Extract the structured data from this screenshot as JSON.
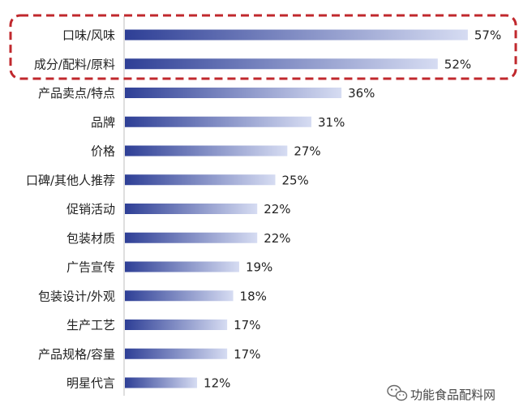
{
  "chart_data": {
    "type": "bar",
    "orientation": "horizontal",
    "categories": [
      "口味/风味",
      "成分/配料/原料",
      "产品卖点/特点",
      "品牌",
      "价格",
      "口碑/其他人推荐",
      "促销活动",
      "包装材质",
      "广告宣传",
      "包装设计/外观",
      "生产工艺",
      "产品规格/容量",
      "明星代言"
    ],
    "values": [
      57,
      52,
      36,
      31,
      27,
      25,
      22,
      22,
      19,
      18,
      17,
      17,
      12
    ],
    "value_labels": [
      "57%",
      "52%",
      "36%",
      "31%",
      "27%",
      "25%",
      "22%",
      "22%",
      "19%",
      "18%",
      "17%",
      "17%",
      "12%"
    ],
    "unit": "%",
    "xlim": [
      0,
      62
    ],
    "highlight": {
      "categories": [
        "口味/风味",
        "成分/配料/原料"
      ],
      "style": "dashed-rounded-box",
      "color": "#c0282d"
    },
    "gradient": {
      "from": "#2e3f96",
      "to": "#d6dcf2"
    }
  },
  "watermark": {
    "text": "功能食品配料网",
    "icon": "wechat-icon"
  }
}
